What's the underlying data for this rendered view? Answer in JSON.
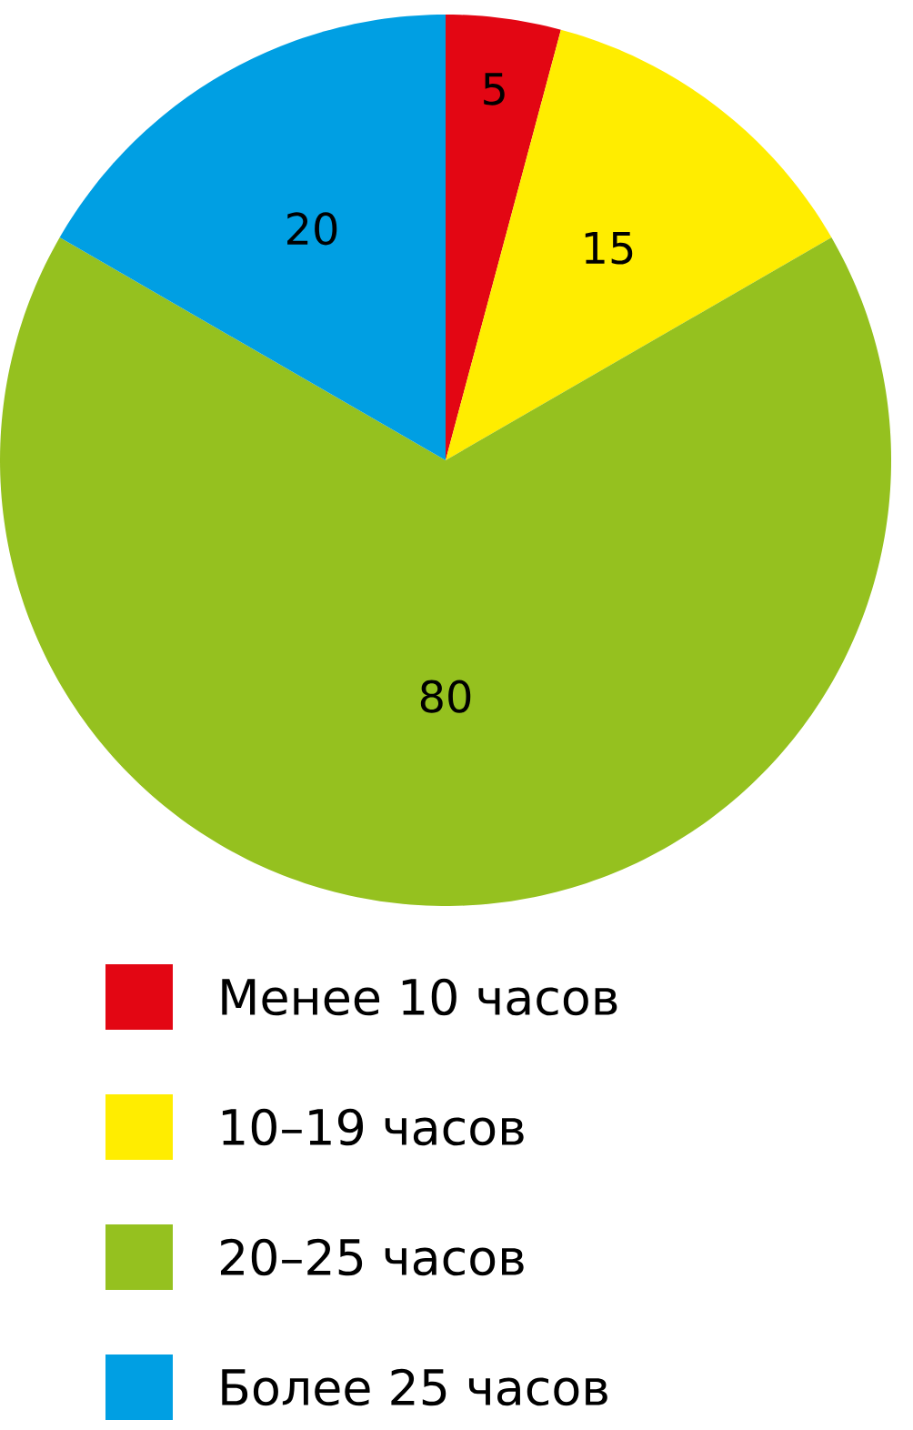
{
  "chart_data": {
    "type": "pie",
    "categories": [
      "Менее 10 часов",
      "10–19 часов",
      "20–25 часов",
      "Более 25 часов"
    ],
    "values": [
      5,
      15,
      80,
      20
    ],
    "colors": [
      "#e30613",
      "#ffed00",
      "#95c11f",
      "#009fe3"
    ],
    "data_labels": true,
    "legend": "bottom"
  }
}
